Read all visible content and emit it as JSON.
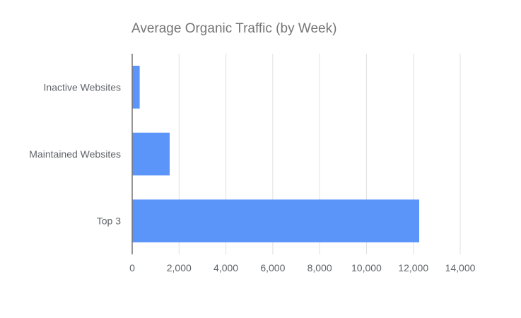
{
  "chart_data": {
    "type": "bar",
    "orientation": "horizontal",
    "title": "Average Organic Traffic (by Week)",
    "categories": [
      "Inactive Websites",
      "Maintained Websites",
      "Top 3"
    ],
    "values": [
      320,
      1600,
      12250
    ],
    "xlabel": "",
    "ylabel": "",
    "xlim": [
      0,
      14000
    ],
    "xticks": [
      "0",
      "2,000",
      "4,000",
      "6,000",
      "8,000",
      "10,000",
      "12,000",
      "14,000"
    ],
    "grid": true,
    "legend": "none",
    "colors": {
      "bar": "#5b95f9",
      "grid": "#e0e0e0",
      "axis": "#757575",
      "title": "#757575",
      "label": "#5f6368"
    }
  }
}
